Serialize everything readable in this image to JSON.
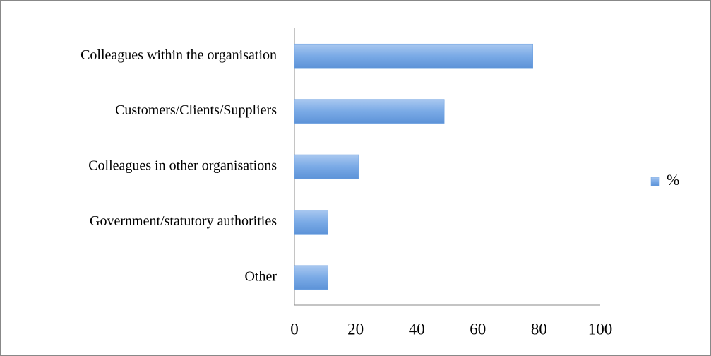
{
  "chart_data": {
    "type": "bar",
    "orientation": "horizontal",
    "categories": [
      "Colleagues within the organisation",
      "Customers/Clients/Suppliers",
      "Colleagues in other organisations",
      "Government/statutory authorities",
      "Other"
    ],
    "series": [
      {
        "name": "%",
        "color": "#6a9fe0",
        "values": [
          78,
          49,
          21,
          11,
          11
        ]
      }
    ],
    "xlim": [
      0,
      100
    ],
    "xticks": [
      0,
      20,
      40,
      60,
      80,
      100
    ],
    "grid": false,
    "legend": "right"
  }
}
